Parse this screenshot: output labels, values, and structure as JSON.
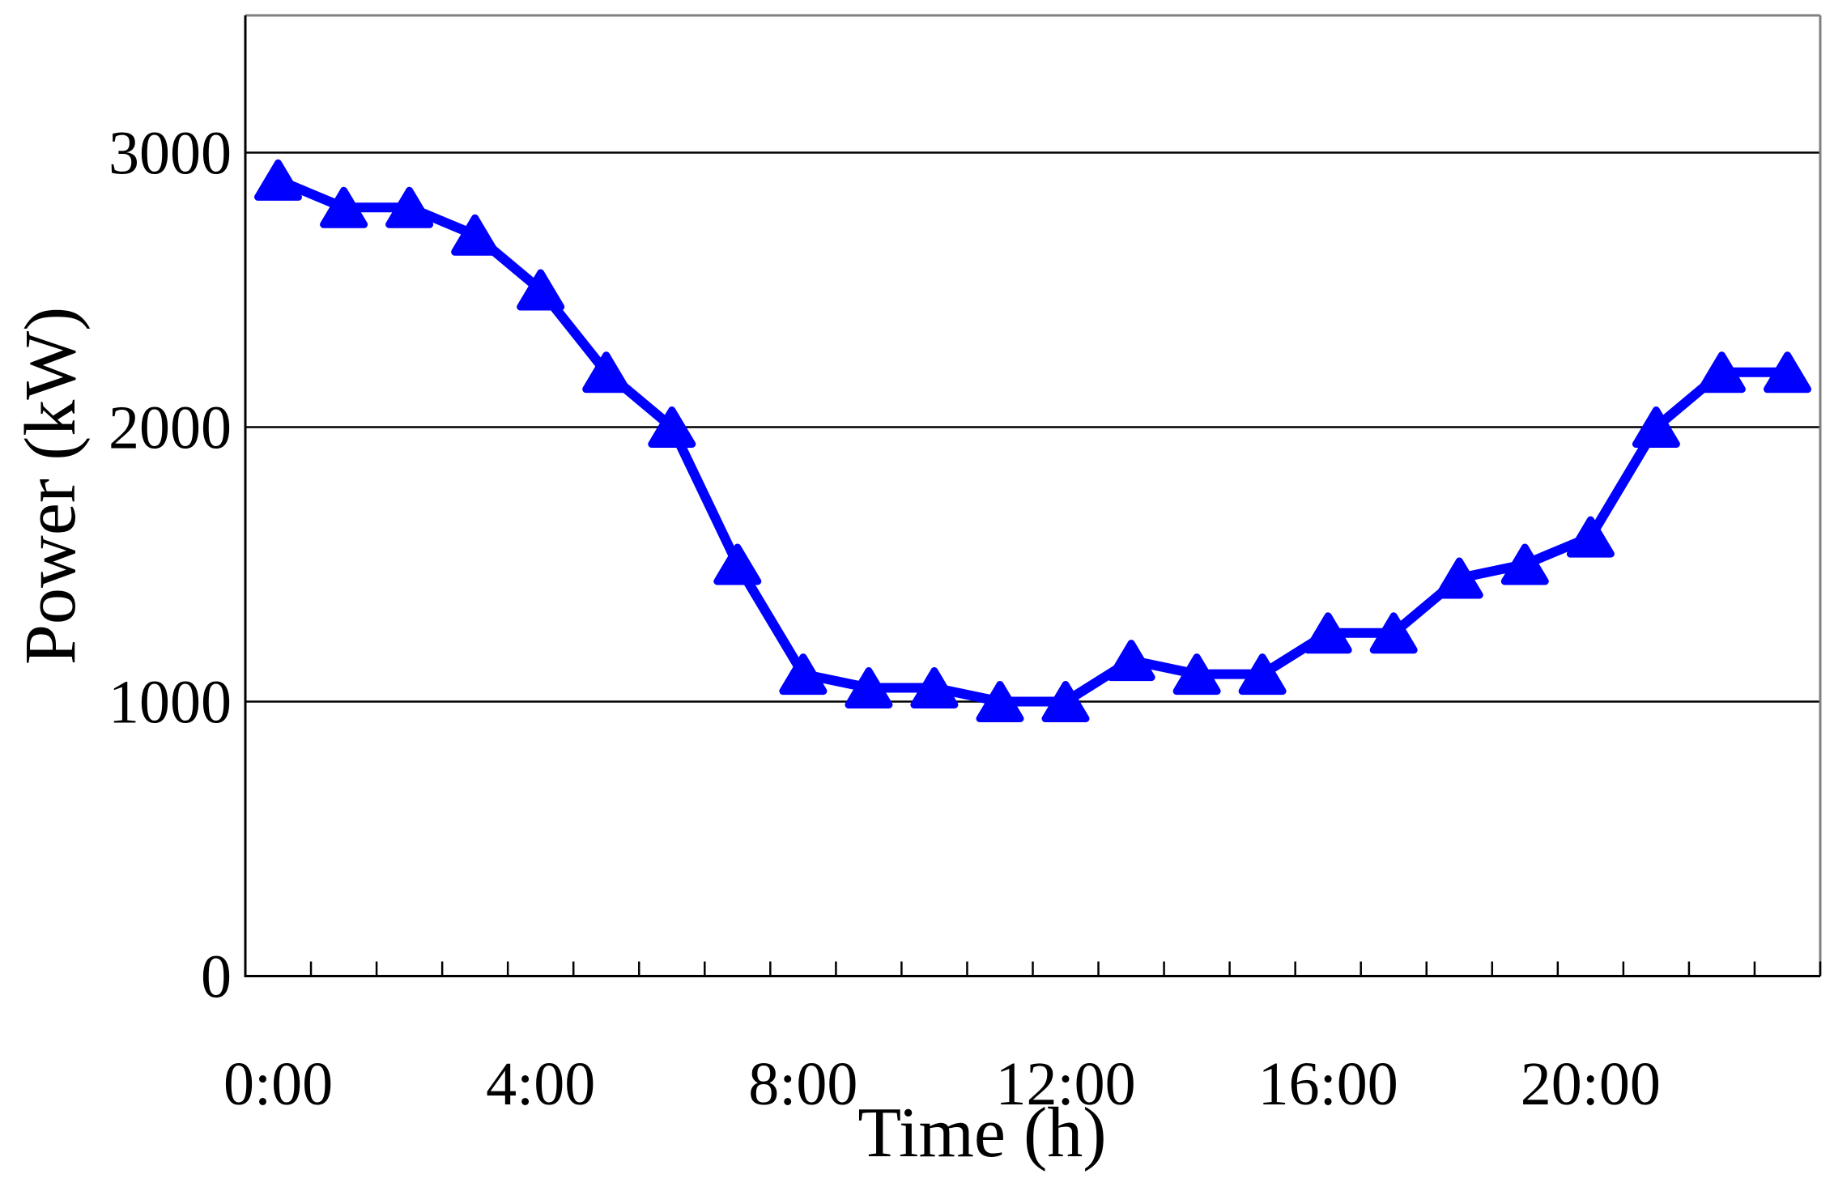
{
  "chart_data": {
    "type": "line",
    "title": "",
    "xlabel": "Time (h)",
    "ylabel": "Power (kW)",
    "categories": [
      "0:00",
      "1:00",
      "2:00",
      "3:00",
      "4:00",
      "5:00",
      "6:00",
      "7:00",
      "8:00",
      "9:00",
      "10:00",
      "11:00",
      "12:00",
      "13:00",
      "14:00",
      "15:00",
      "16:00",
      "17:00",
      "18:00",
      "19:00",
      "20:00",
      "21:00",
      "22:00",
      "23:00"
    ],
    "values": [
      2900,
      2800,
      2800,
      2700,
      2500,
      2200,
      2000,
      1500,
      1100,
      1050,
      1050,
      1000,
      1000,
      1150,
      1100,
      1100,
      1250,
      1250,
      1450,
      1500,
      1600,
      2000,
      2200,
      2200
    ],
    "x_tick_labels": [
      "0:00",
      "4:00",
      "8:00",
      "12:00",
      "16:00",
      "20:00"
    ],
    "x_tick_hours": [
      0,
      4,
      8,
      12,
      16,
      20
    ],
    "y_tick_labels": [
      "0",
      "1000",
      "2000",
      "3000"
    ],
    "y_tick_values": [
      0,
      1000,
      2000,
      3000
    ],
    "ylim": [
      0,
      3500
    ],
    "grid": "horizontal-major",
    "legend": "none",
    "marker": "triangle-up",
    "series_color": "#0000FF",
    "gridline_color": "#000000",
    "axis_color": "#000000",
    "plot_border_color": "#808080",
    "background_color": "#FFFFFF"
  }
}
